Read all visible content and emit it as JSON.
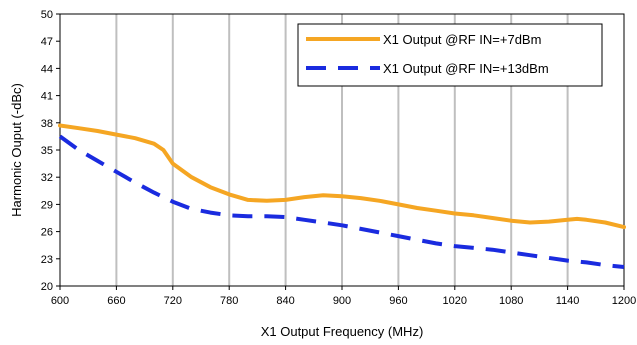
{
  "chart_data": {
    "type": "line",
    "xlabel": "X1 Output Frequency (MHz)",
    "ylabel": "Harmonic Ouput (-dBc)",
    "xlim": [
      600,
      1200
    ],
    "ylim": [
      20,
      50
    ],
    "x_ticks": [
      "600",
      "660",
      "720",
      "780",
      "840",
      "900",
      "960",
      "1020",
      "1080",
      "1140",
      "1200"
    ],
    "y_ticks": [
      "20",
      "23",
      "26",
      "29",
      "32",
      "35",
      "38",
      "41",
      "44",
      "47",
      "50"
    ],
    "grid": {
      "vertical": true,
      "horizontal": false
    },
    "legend_position": "top-right",
    "series": [
      {
        "name": "X1 Output @RF IN=+7dBm",
        "color": "#F5A623",
        "style": "solid",
        "x": [
          600,
          620,
          640,
          660,
          680,
          700,
          710,
          720,
          740,
          760,
          780,
          800,
          820,
          840,
          860,
          880,
          900,
          920,
          940,
          960,
          980,
          1000,
          1020,
          1040,
          1060,
          1080,
          1100,
          1120,
          1140,
          1150,
          1160,
          1180,
          1200
        ],
        "y": [
          37.7,
          37.4,
          37.1,
          36.7,
          36.3,
          35.7,
          35.0,
          33.5,
          32.0,
          30.9,
          30.1,
          29.5,
          29.4,
          29.5,
          29.8,
          30.0,
          29.9,
          29.7,
          29.4,
          29.0,
          28.6,
          28.3,
          28.0,
          27.8,
          27.5,
          27.2,
          27.0,
          27.1,
          27.3,
          27.4,
          27.3,
          27.0,
          26.5
        ]
      },
      {
        "name": "X1 Output @RF IN=+13dBm",
        "color": "#1A2BDF",
        "style": "dashed",
        "x": [
          600,
          620,
          640,
          660,
          680,
          700,
          720,
          740,
          760,
          780,
          800,
          820,
          840,
          860,
          880,
          900,
          920,
          940,
          960,
          980,
          1000,
          1020,
          1040,
          1060,
          1080,
          1100,
          1120,
          1140,
          1160,
          1180,
          1200
        ],
        "y": [
          36.5,
          35.0,
          33.8,
          32.6,
          31.4,
          30.3,
          29.3,
          28.5,
          28.1,
          27.8,
          27.7,
          27.7,
          27.6,
          27.3,
          27.0,
          26.7,
          26.3,
          25.9,
          25.5,
          25.1,
          24.7,
          24.4,
          24.2,
          24.0,
          23.7,
          23.4,
          23.1,
          22.8,
          22.6,
          22.3,
          22.1
        ]
      }
    ]
  }
}
